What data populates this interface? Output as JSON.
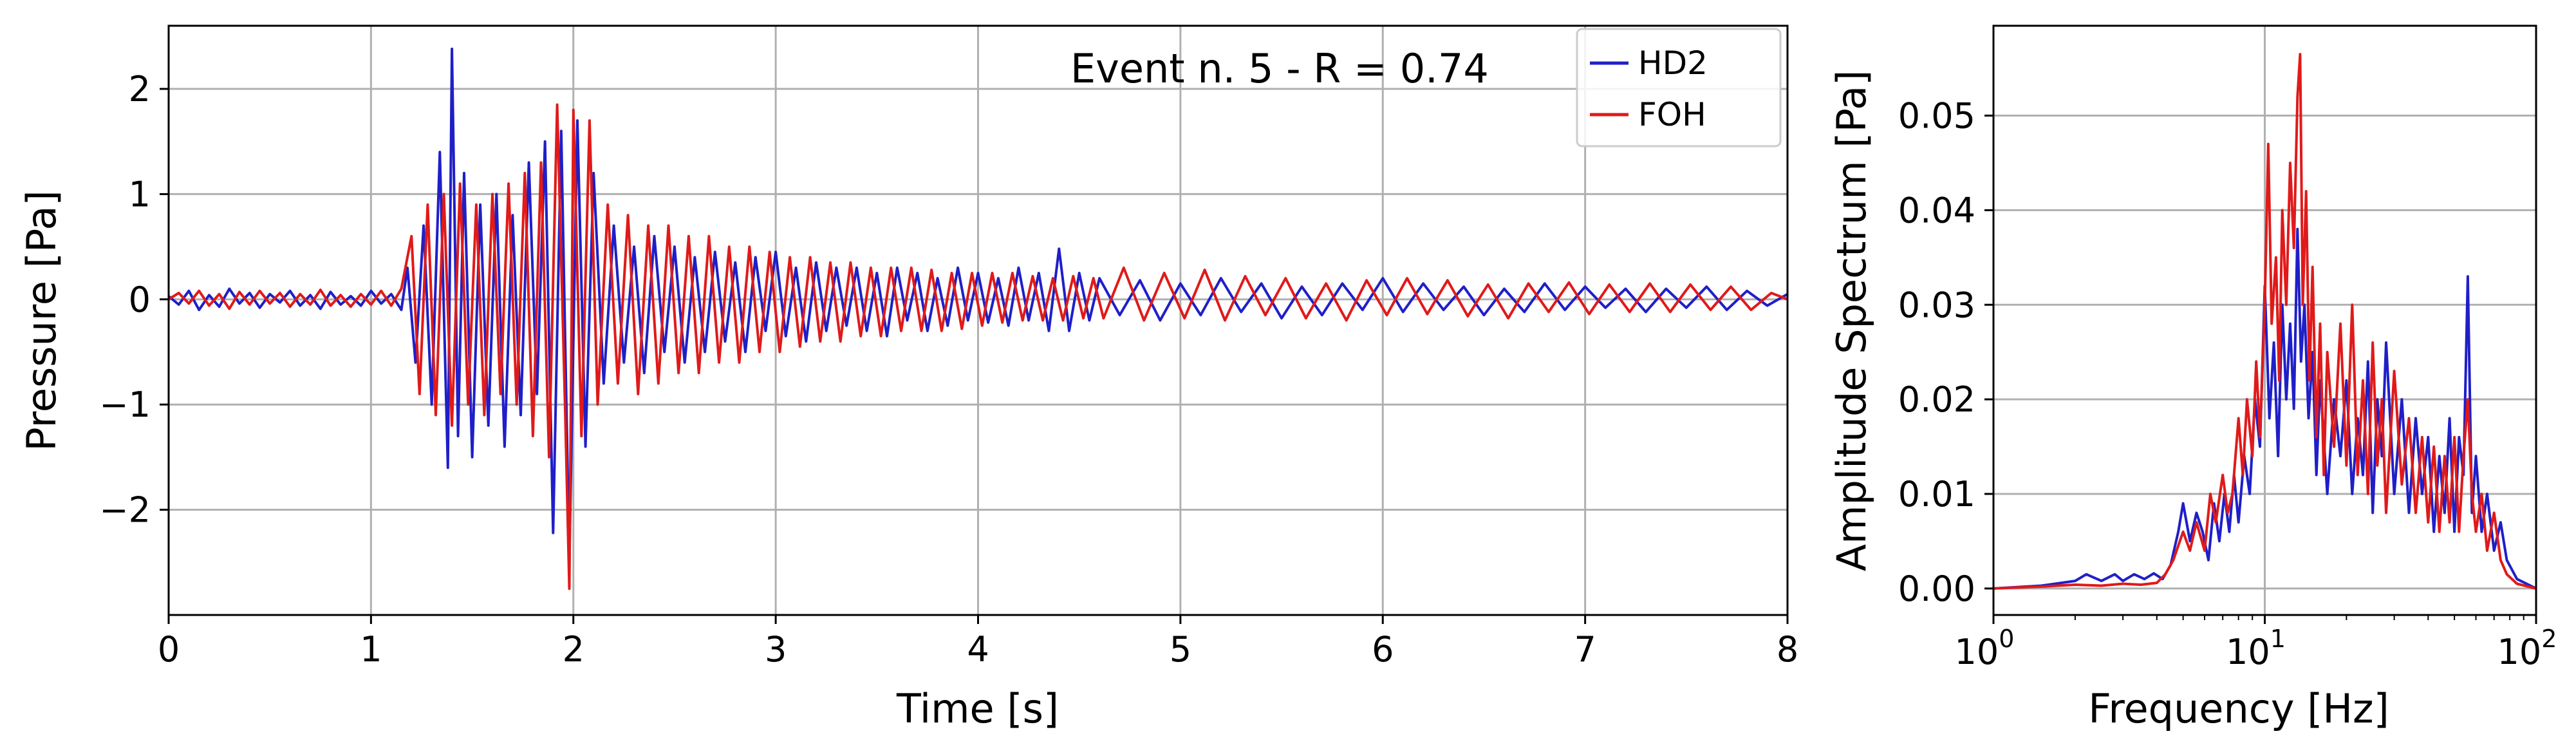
{
  "chart_data": [
    {
      "type": "line",
      "annotation": "Event n. 5 - R = 0.74",
      "xlabel": "Time [s]",
      "ylabel": "Pressure [Pa]",
      "xlim": [
        0,
        8
      ],
      "ylim": [
        -3.0,
        2.6
      ],
      "xticks": [
        0,
        1,
        2,
        3,
        4,
        5,
        6,
        7,
        8
      ],
      "xtick_labels": [
        "0",
        "1",
        "2",
        "3",
        "4",
        "5",
        "6",
        "7",
        "8"
      ],
      "yticks": [
        -2,
        -1,
        0,
        1,
        2
      ],
      "ytick_labels": [
        "−2",
        "−1",
        "0",
        "1",
        "2"
      ],
      "grid": true,
      "legend_position": "top-right",
      "series": [
        {
          "name": "HD2",
          "color": "#1f1fc8",
          "x": [
            0.0,
            0.05,
            0.1,
            0.15,
            0.2,
            0.25,
            0.3,
            0.35,
            0.4,
            0.45,
            0.5,
            0.55,
            0.6,
            0.65,
            0.7,
            0.75,
            0.8,
            0.85,
            0.9,
            0.95,
            1.0,
            1.05,
            1.1,
            1.15,
            1.18,
            1.22,
            1.26,
            1.3,
            1.34,
            1.38,
            1.4,
            1.43,
            1.46,
            1.5,
            1.54,
            1.58,
            1.62,
            1.66,
            1.7,
            1.74,
            1.78,
            1.82,
            1.86,
            1.9,
            1.94,
            1.98,
            2.02,
            2.06,
            2.1,
            2.15,
            2.2,
            2.25,
            2.3,
            2.35,
            2.4,
            2.45,
            2.5,
            2.55,
            2.6,
            2.65,
            2.7,
            2.75,
            2.8,
            2.85,
            2.9,
            2.95,
            3.0,
            3.05,
            3.1,
            3.15,
            3.2,
            3.25,
            3.3,
            3.35,
            3.4,
            3.45,
            3.5,
            3.55,
            3.6,
            3.65,
            3.7,
            3.75,
            3.8,
            3.85,
            3.9,
            3.95,
            4.0,
            4.05,
            4.1,
            4.15,
            4.2,
            4.25,
            4.3,
            4.35,
            4.4,
            4.45,
            4.5,
            4.55,
            4.6,
            4.7,
            4.8,
            4.9,
            5.0,
            5.1,
            5.2,
            5.3,
            5.4,
            5.5,
            5.6,
            5.7,
            5.8,
            5.9,
            6.0,
            6.1,
            6.2,
            6.3,
            6.4,
            6.5,
            6.6,
            6.7,
            6.8,
            6.9,
            7.0,
            7.1,
            7.2,
            7.3,
            7.4,
            7.5,
            7.6,
            7.7,
            7.8,
            7.9,
            8.0
          ],
          "y": [
            0.03,
            -0.05,
            0.08,
            -0.1,
            0.04,
            -0.07,
            0.1,
            -0.04,
            0.06,
            -0.08,
            0.05,
            -0.03,
            0.08,
            -0.06,
            0.04,
            -0.09,
            0.07,
            -0.05,
            0.03,
            -0.06,
            0.08,
            -0.04,
            0.05,
            -0.1,
            0.3,
            -0.6,
            0.7,
            -1.0,
            1.4,
            -1.6,
            2.38,
            -1.3,
            1.2,
            -1.5,
            0.9,
            -1.2,
            1.0,
            -1.4,
            0.8,
            -1.1,
            1.3,
            -0.9,
            1.5,
            -2.22,
            1.6,
            -2.5,
            1.7,
            -1.4,
            1.2,
            -0.8,
            0.7,
            -0.6,
            0.5,
            -0.7,
            0.6,
            -0.5,
            0.5,
            -0.6,
            0.4,
            -0.5,
            0.45,
            -0.4,
            0.35,
            -0.5,
            0.4,
            -0.3,
            0.45,
            -0.35,
            0.3,
            -0.4,
            0.35,
            -0.3,
            0.3,
            -0.25,
            0.3,
            -0.3,
            0.25,
            -0.35,
            0.3,
            -0.2,
            0.25,
            -0.3,
            0.2,
            -0.25,
            0.3,
            -0.2,
            0.25,
            -0.22,
            0.2,
            -0.25,
            0.3,
            -0.2,
            0.25,
            -0.3,
            0.48,
            -0.3,
            0.25,
            -0.2,
            0.2,
            -0.15,
            0.18,
            -0.2,
            0.15,
            -0.15,
            0.2,
            -0.12,
            0.15,
            -0.18,
            0.12,
            -0.15,
            0.15,
            -0.1,
            0.2,
            -0.12,
            0.15,
            -0.1,
            0.12,
            -0.15,
            0.1,
            -0.12,
            0.15,
            -0.1,
            0.12,
            -0.08,
            0.1,
            -0.12,
            0.1,
            -0.08,
            0.12,
            -0.1,
            0.08,
            -0.06,
            0.05
          ]
        },
        {
          "name": "FOH",
          "color": "#e01a1a",
          "x": [
            0.0,
            0.05,
            0.1,
            0.15,
            0.2,
            0.25,
            0.3,
            0.35,
            0.4,
            0.45,
            0.5,
            0.55,
            0.6,
            0.65,
            0.7,
            0.75,
            0.8,
            0.85,
            0.9,
            0.95,
            1.0,
            1.05,
            1.1,
            1.15,
            1.2,
            1.24,
            1.28,
            1.32,
            1.36,
            1.4,
            1.44,
            1.48,
            1.52,
            1.56,
            1.6,
            1.64,
            1.68,
            1.72,
            1.76,
            1.8,
            1.84,
            1.88,
            1.92,
            1.96,
            1.98,
            2.0,
            2.04,
            2.08,
            2.12,
            2.17,
            2.22,
            2.27,
            2.32,
            2.37,
            2.42,
            2.47,
            2.52,
            2.57,
            2.62,
            2.67,
            2.72,
            2.77,
            2.82,
            2.87,
            2.92,
            2.97,
            3.02,
            3.07,
            3.12,
            3.17,
            3.22,
            3.27,
            3.32,
            3.37,
            3.42,
            3.47,
            3.52,
            3.57,
            3.62,
            3.67,
            3.72,
            3.77,
            3.82,
            3.87,
            3.92,
            3.97,
            4.02,
            4.07,
            4.12,
            4.17,
            4.22,
            4.27,
            4.32,
            4.37,
            4.42,
            4.47,
            4.52,
            4.57,
            4.62,
            4.72,
            4.82,
            4.92,
            5.02,
            5.12,
            5.22,
            5.32,
            5.42,
            5.52,
            5.62,
            5.72,
            5.82,
            5.92,
            6.02,
            6.12,
            6.22,
            6.32,
            6.42,
            6.52,
            6.62,
            6.72,
            6.82,
            6.92,
            7.02,
            7.12,
            7.22,
            7.32,
            7.42,
            7.52,
            7.62,
            7.72,
            7.82,
            7.92,
            8.0
          ],
          "y": [
            0.0,
            0.06,
            -0.04,
            0.08,
            -0.06,
            0.05,
            -0.09,
            0.07,
            -0.05,
            0.08,
            -0.04,
            0.06,
            -0.07,
            0.05,
            -0.05,
            0.09,
            -0.06,
            0.04,
            -0.07,
            0.05,
            -0.05,
            0.08,
            -0.06,
            0.1,
            0.6,
            -0.9,
            0.9,
            -1.1,
            1.0,
            -1.2,
            1.1,
            -1.0,
            0.9,
            -1.1,
            1.0,
            -0.9,
            1.1,
            -1.0,
            1.2,
            -1.3,
            1.3,
            -1.5,
            1.85,
            -1.1,
            -2.75,
            1.8,
            -1.3,
            1.7,
            -1.0,
            0.9,
            -0.8,
            0.8,
            -0.9,
            0.7,
            -0.8,
            0.7,
            -0.7,
            0.6,
            -0.7,
            0.6,
            -0.6,
            0.5,
            -0.6,
            0.5,
            -0.5,
            0.45,
            -0.5,
            0.4,
            -0.45,
            0.4,
            -0.4,
            0.35,
            -0.4,
            0.35,
            -0.35,
            0.3,
            -0.35,
            0.3,
            -0.3,
            0.3,
            -0.3,
            0.28,
            -0.3,
            0.25,
            -0.28,
            0.25,
            -0.25,
            0.25,
            -0.22,
            0.25,
            -0.2,
            0.22,
            -0.2,
            0.2,
            -0.2,
            0.22,
            -0.18,
            0.2,
            -0.18,
            0.3,
            -0.2,
            0.25,
            -0.18,
            0.28,
            -0.2,
            0.22,
            -0.15,
            0.2,
            -0.18,
            0.15,
            -0.2,
            0.18,
            -0.15,
            0.2,
            -0.14,
            0.18,
            -0.16,
            0.14,
            -0.18,
            0.15,
            -0.12,
            0.16,
            -0.14,
            0.14,
            -0.12,
            0.15,
            -0.12,
            0.14,
            -0.1,
            0.12,
            -0.1,
            0.06,
            0.0
          ]
        }
      ]
    },
    {
      "type": "line",
      "xlabel": "Frequency [Hz]",
      "ylabel": "Amplitude Spectrum [Pa]",
      "xscale": "log",
      "xlim": [
        1,
        100
      ],
      "ylim": [
        -0.0028,
        0.0595
      ],
      "xticks": [
        1,
        10,
        100
      ],
      "xtick_base": "10",
      "xtick_exponents": [
        "0",
        "1",
        "2"
      ],
      "yticks": [
        0.0,
        0.01,
        0.02,
        0.03,
        0.04,
        0.05
      ],
      "ytick_labels": [
        "0.00",
        "0.01",
        "0.02",
        "0.03",
        "0.04",
        "0.05"
      ],
      "grid": true,
      "series": [
        {
          "name": "HD2",
          "color": "#1f1fc8",
          "x": [
            1.0,
            1.5,
            2.0,
            2.2,
            2.5,
            2.8,
            3.0,
            3.3,
            3.6,
            3.9,
            4.2,
            4.5,
            4.8,
            5.0,
            5.3,
            5.6,
            5.9,
            6.2,
            6.5,
            6.8,
            7.1,
            7.4,
            7.7,
            8.0,
            8.4,
            8.8,
            9.2,
            9.6,
            10.0,
            10.4,
            10.8,
            11.2,
            11.6,
            12.0,
            12.4,
            12.8,
            13.2,
            13.6,
            14.0,
            14.5,
            15.0,
            15.5,
            16.0,
            17.0,
            18.0,
            19.0,
            20.0,
            21.0,
            22.0,
            23.0,
            24.0,
            25.0,
            26.0,
            27.0,
            28.0,
            30.0,
            32.0,
            34.0,
            36.0,
            38.0,
            40.0,
            42.0,
            44.0,
            46.0,
            48.0,
            50.0,
            52.0,
            54.0,
            56.0,
            58.0,
            60.0,
            63.0,
            66.0,
            70.0,
            74.0,
            78.0,
            85.0,
            100.0
          ],
          "y": [
            0.0,
            0.0003,
            0.0008,
            0.0015,
            0.0008,
            0.0015,
            0.0008,
            0.0015,
            0.001,
            0.0016,
            0.001,
            0.0025,
            0.006,
            0.009,
            0.005,
            0.008,
            0.006,
            0.003,
            0.009,
            0.005,
            0.01,
            0.006,
            0.012,
            0.007,
            0.014,
            0.01,
            0.02,
            0.015,
            0.032,
            0.018,
            0.026,
            0.014,
            0.03,
            0.02,
            0.028,
            0.019,
            0.038,
            0.024,
            0.03,
            0.018,
            0.025,
            0.012,
            0.022,
            0.01,
            0.02,
            0.014,
            0.022,
            0.01,
            0.018,
            0.012,
            0.024,
            0.008,
            0.02,
            0.014,
            0.026,
            0.01,
            0.02,
            0.008,
            0.018,
            0.01,
            0.016,
            0.006,
            0.014,
            0.008,
            0.018,
            0.006,
            0.016,
            0.012,
            0.033,
            0.008,
            0.014,
            0.006,
            0.01,
            0.004,
            0.007,
            0.003,
            0.001,
            0.0
          ]
        },
        {
          "name": "FOH",
          "color": "#e01a1a",
          "x": [
            1.0,
            1.5,
            2.0,
            2.5,
            3.0,
            3.5,
            4.0,
            4.3,
            4.6,
            5.0,
            5.3,
            5.6,
            6.0,
            6.3,
            6.6,
            7.0,
            7.3,
            7.6,
            8.0,
            8.3,
            8.6,
            9.0,
            9.3,
            9.6,
            10.0,
            10.3,
            10.6,
            11.0,
            11.3,
            11.6,
            12.0,
            12.4,
            12.8,
            13.2,
            13.5,
            13.8,
            14.2,
            14.6,
            15.0,
            15.5,
            16.0,
            16.5,
            17.0,
            18.0,
            19.0,
            20.0,
            21.0,
            22.0,
            23.0,
            24.0,
            25.0,
            26.0,
            27.0,
            28.0,
            30.0,
            32.0,
            34.0,
            36.0,
            38.0,
            40.0,
            42.0,
            44.0,
            46.0,
            48.0,
            50.0,
            52.0,
            54.0,
            56.0,
            58.0,
            60.0,
            63.0,
            66.0,
            70.0,
            74.0,
            78.0,
            85.0,
            100.0
          ],
          "y": [
            0.0,
            0.0002,
            0.0004,
            0.0003,
            0.0005,
            0.0004,
            0.0006,
            0.0015,
            0.003,
            0.006,
            0.004,
            0.007,
            0.004,
            0.01,
            0.007,
            0.012,
            0.008,
            0.01,
            0.018,
            0.012,
            0.02,
            0.014,
            0.024,
            0.016,
            0.03,
            0.047,
            0.028,
            0.035,
            0.022,
            0.04,
            0.03,
            0.045,
            0.036,
            0.052,
            0.0565,
            0.03,
            0.042,
            0.022,
            0.034,
            0.016,
            0.028,
            0.012,
            0.025,
            0.015,
            0.028,
            0.013,
            0.03,
            0.012,
            0.022,
            0.01,
            0.026,
            0.013,
            0.02,
            0.008,
            0.023,
            0.011,
            0.018,
            0.008,
            0.016,
            0.007,
            0.015,
            0.006,
            0.014,
            0.007,
            0.016,
            0.006,
            0.014,
            0.02,
            0.01,
            0.006,
            0.01,
            0.004,
            0.008,
            0.003,
            0.0015,
            0.0005,
            0.0
          ]
        }
      ]
    }
  ]
}
